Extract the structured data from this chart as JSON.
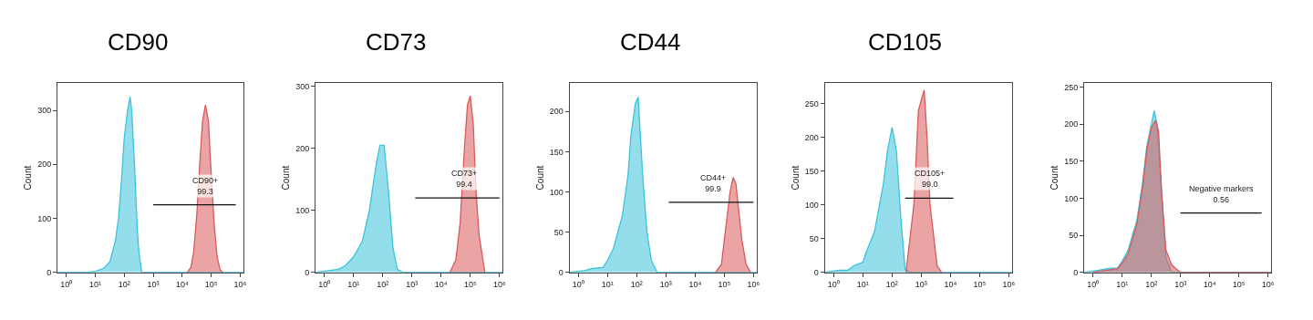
{
  "chart_data": [
    {
      "type": "area",
      "title": "CD90",
      "ylabel": "Count",
      "log": "x",
      "xlim": [
        0.5,
        1300000
      ],
      "ylim": [
        0,
        350
      ],
      "xticks": [
        {
          "value": 1,
          "label": "10⁰"
        },
        {
          "value": 10,
          "label": "10¹"
        },
        {
          "value": 100,
          "label": "10²"
        },
        {
          "value": 1000,
          "label": "10³"
        },
        {
          "value": 10000,
          "label": "10⁴"
        },
        {
          "value": 100000,
          "label": "10⁵"
        },
        {
          "value": 1000000,
          "label": "10⁶"
        }
      ],
      "yticks": [
        0,
        100,
        200,
        300
      ],
      "series": [
        {
          "color": "#3cc3dc",
          "x": [
            0.5,
            5,
            10,
            20,
            32,
            50,
            63,
            80,
            100,
            130,
            158,
            180,
            224,
            280,
            316,
            400,
            1300000
          ],
          "values": [
            0,
            0,
            2,
            8,
            20,
            60,
            100,
            170,
            250,
            300,
            325,
            300,
            200,
            80,
            40,
            0,
            0
          ]
        },
        {
          "color": "#d95a5a",
          "x": [
            15000,
            20000,
            25000,
            32000,
            40000,
            50000,
            63000,
            80000,
            100000,
            126000,
            158000,
            200000,
            250000
          ],
          "values": [
            0,
            10,
            40,
            110,
            200,
            280,
            310,
            280,
            180,
            90,
            30,
            5,
            0
          ]
        },
        {
          "type": "line",
          "color": "#111111",
          "x": [
            1000,
            700000
          ],
          "values": [
            125,
            125
          ]
        }
      ],
      "annotations": [
        {
          "text": "CD90+\n99.3",
          "x": 60000,
          "y": 125
        }
      ]
    },
    {
      "type": "area",
      "title": "CD73",
      "ylabel": "Count",
      "log": "x",
      "xlim": [
        0.5,
        1300000
      ],
      "ylim": [
        0,
        305
      ],
      "xticks": [
        {
          "value": 1,
          "label": "10⁰"
        },
        {
          "value": 10,
          "label": "10¹"
        },
        {
          "value": 100,
          "label": "10²"
        },
        {
          "value": 1000,
          "label": "10³"
        },
        {
          "value": 10000,
          "label": "10⁴"
        },
        {
          "value": 100000,
          "label": "10⁵"
        },
        {
          "value": 1000000,
          "label": "10⁶"
        }
      ],
      "yticks": [
        0,
        100,
        200,
        300
      ],
      "series": [
        {
          "color": "#3cc3dc",
          "x": [
            0.5,
            1.6,
            3,
            5,
            10,
            20,
            35,
            50,
            63,
            80,
            112,
            158,
            224,
            316,
            500,
            1300000
          ],
          "values": [
            0,
            3,
            5,
            10,
            25,
            50,
            100,
            150,
            180,
            205,
            205,
            130,
            40,
            5,
            0,
            0
          ]
        },
        {
          "color": "#d95a5a",
          "x": [
            20000,
            32000,
            45000,
            63000,
            80000,
            100000,
            126000,
            158000,
            200000,
            316000
          ],
          "values": [
            0,
            20,
            80,
            200,
            270,
            285,
            240,
            130,
            60,
            0
          ]
        },
        {
          "type": "line",
          "color": "#111111",
          "x": [
            1300,
            1000000
          ],
          "values": [
            120,
            120
          ]
        }
      ],
      "annotations": [
        {
          "text": "CD73+\n99.4",
          "x": 63000,
          "y": 120
        }
      ]
    },
    {
      "type": "area",
      "title": "CD44",
      "ylabel": "Count",
      "log": "x",
      "xlim": [
        0.5,
        1300000
      ],
      "ylim": [
        0,
        235
      ],
      "xticks": [
        {
          "value": 1,
          "label": "10⁰"
        },
        {
          "value": 10,
          "label": "10¹"
        },
        {
          "value": 100,
          "label": "10²"
        },
        {
          "value": 1000,
          "label": "10³"
        },
        {
          "value": 10000,
          "label": "10⁴"
        },
        {
          "value": 100000,
          "label": "10⁵"
        },
        {
          "value": 1000000,
          "label": "10⁶"
        }
      ],
      "yticks": [
        0,
        50,
        100,
        150,
        200
      ],
      "series": [
        {
          "color": "#3cc3dc",
          "x": [
            0.5,
            1.6,
            3,
            7,
            10,
            16,
            32,
            50,
            63,
            90,
            112,
            160,
            224,
            316,
            500,
            1300000
          ],
          "values": [
            0,
            2,
            5,
            6,
            15,
            30,
            70,
            120,
            170,
            210,
            218,
            120,
            50,
            15,
            0,
            0
          ]
        },
        {
          "color": "#d95a5a",
          "x": [
            50000,
            80000,
            100000,
            158000,
            200000,
            250000,
            400000,
            560000,
            800000
          ],
          "values": [
            0,
            10,
            40,
            100,
            118,
            110,
            40,
            10,
            0
          ]
        },
        {
          "type": "line",
          "color": "#111111",
          "x": [
            1250,
            1000000
          ],
          "values": [
            87,
            87
          ]
        }
      ],
      "annotations": [
        {
          "text": "CD44+\n99.9",
          "x": 40000,
          "y": 87
        }
      ]
    },
    {
      "type": "area",
      "title": "CD105",
      "ylabel": "Count",
      "log": "x",
      "xlim": [
        0.5,
        1300000
      ],
      "ylim": [
        0,
        280
      ],
      "xticks": [
        {
          "value": 1,
          "label": "10⁰"
        },
        {
          "value": 10,
          "label": "10¹"
        },
        {
          "value": 100,
          "label": "10²"
        },
        {
          "value": 1000,
          "label": "10³"
        },
        {
          "value": 10000,
          "label": "10⁴"
        },
        {
          "value": 100000,
          "label": "10⁵"
        },
        {
          "value": 1000000,
          "label": "10⁶"
        }
      ],
      "yticks": [
        0,
        50,
        100,
        150,
        200,
        250
      ],
      "series": [
        {
          "color": "#3cc3dc",
          "x": [
            0.5,
            1.6,
            3,
            5,
            10,
            13,
            25,
            50,
            70,
            100,
            141,
            200,
            280,
            400,
            1300000
          ],
          "values": [
            0,
            3,
            3,
            10,
            15,
            30,
            60,
            130,
            180,
            215,
            180,
            80,
            5,
            0,
            0
          ]
        },
        {
          "color": "#d95a5a",
          "x": [
            300,
            560,
            800,
            1000,
            1260,
            1580,
            2000,
            3500,
            5000
          ],
          "values": [
            0,
            100,
            240,
            255,
            270,
            200,
            100,
            10,
            0
          ]
        },
        {
          "type": "line",
          "color": "#111111",
          "x": [
            280,
            12600
          ],
          "values": [
            110,
            110
          ]
        }
      ],
      "annotations": [
        {
          "text": "CD105+\n99.0",
          "x": 2000,
          "y": 110
        }
      ]
    },
    {
      "type": "area",
      "ylabel": "Count",
      "log": "x",
      "xlim": [
        0.5,
        1300000
      ],
      "ylim": [
        0,
        255
      ],
      "xticks": [
        {
          "value": 1,
          "label": "10⁰"
        },
        {
          "value": 10,
          "label": "10¹"
        },
        {
          "value": 100,
          "label": "10²"
        },
        {
          "value": 1000,
          "label": "10³"
        },
        {
          "value": 10000,
          "label": "10⁴"
        },
        {
          "value": 100000,
          "label": "10⁵"
        },
        {
          "value": 1000000,
          "label": "10⁶"
        }
      ],
      "yticks": [
        0,
        50,
        100,
        150,
        200,
        250
      ],
      "series": [
        {
          "color": "#3cc3dc",
          "x": [
            0.5,
            1.6,
            3,
            7,
            10,
            16,
            32,
            50,
            70,
            100,
            126,
            158,
            224,
            316,
            500,
            1300000
          ],
          "values": [
            0,
            3,
            5,
            6,
            15,
            30,
            70,
            120,
            170,
            200,
            218,
            200,
            110,
            20,
            0,
            0
          ]
        },
        {
          "color": "#d95a5a",
          "x": [
            1,
            3,
            7,
            10,
            16,
            32,
            50,
            70,
            100,
            141,
            178,
            224,
            316,
            500,
            700,
            1000,
            1300000
          ],
          "values": [
            0,
            3,
            5,
            12,
            25,
            65,
            115,
            165,
            195,
            205,
            190,
            110,
            30,
            10,
            5,
            0,
            0
          ]
        },
        {
          "type": "line",
          "color": "#111111",
          "x": [
            1000,
            600000
          ],
          "values": [
            80,
            80
          ]
        }
      ],
      "annotations": [
        {
          "text": "Negative markers\n0.56",
          "x": 25000,
          "y": 80
        }
      ]
    }
  ]
}
